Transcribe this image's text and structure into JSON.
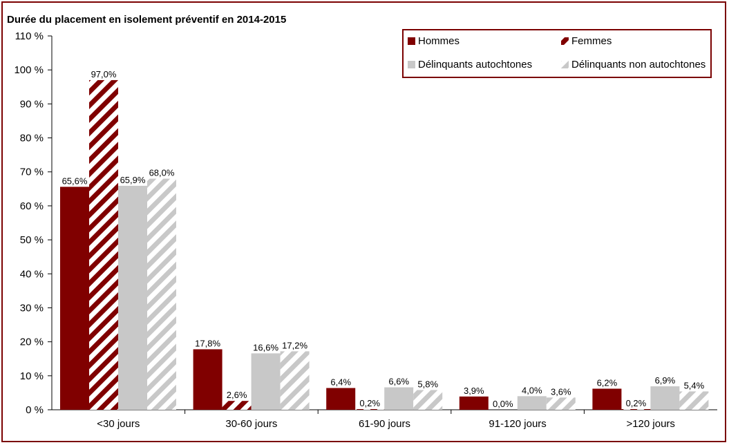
{
  "chart_data": {
    "type": "bar",
    "title": "Durée du placement en isolement préventif en 2014-2015",
    "xlabel": "",
    "ylabel": "",
    "ylim": [
      0,
      110
    ],
    "yticks": [
      "0 %",
      "10 %",
      "20 %",
      "30 %",
      "40 %",
      "50 %",
      "60 %",
      "70 %",
      "80 %",
      "90 %",
      "100 %",
      "110 %"
    ],
    "categories": [
      "<30 jours",
      "30-60 jours",
      "61-90 jours",
      "91-120 jours",
      ">120 jours"
    ],
    "series": [
      {
        "name": "Hommes",
        "values": [
          65.6,
          17.8,
          6.4,
          3.9,
          6.2
        ],
        "labels": [
          "65,6%",
          "17,8%",
          "6,4%",
          "3,9%",
          "6,2%"
        ],
        "color": "#800000",
        "pattern": "solid"
      },
      {
        "name": "Femmes",
        "values": [
          97.0,
          2.6,
          0.2,
          0.0,
          0.2
        ],
        "labels": [
          "97,0%",
          "2,6%",
          "0,2%",
          "0,0%",
          "0,2%"
        ],
        "color": "#800000",
        "pattern": "hatch"
      },
      {
        "name": "Délinquants autochtones",
        "values": [
          65.9,
          16.6,
          6.6,
          4.0,
          6.9
        ],
        "labels": [
          "65,9%",
          "16,6%",
          "6,6%",
          "4,0%",
          "6,9%"
        ],
        "color": "#c8c8c8",
        "pattern": "solid"
      },
      {
        "name": "Délinquants non autochtones",
        "values": [
          68.0,
          17.2,
          5.8,
          3.6,
          5.4
        ],
        "labels": [
          "68,0%",
          "17,2%",
          "5,8%",
          "3,6%",
          "5,4%"
        ],
        "color": "#c8c8c8",
        "pattern": "hatch"
      }
    ],
    "legend_position": "top-right",
    "grid": false
  }
}
